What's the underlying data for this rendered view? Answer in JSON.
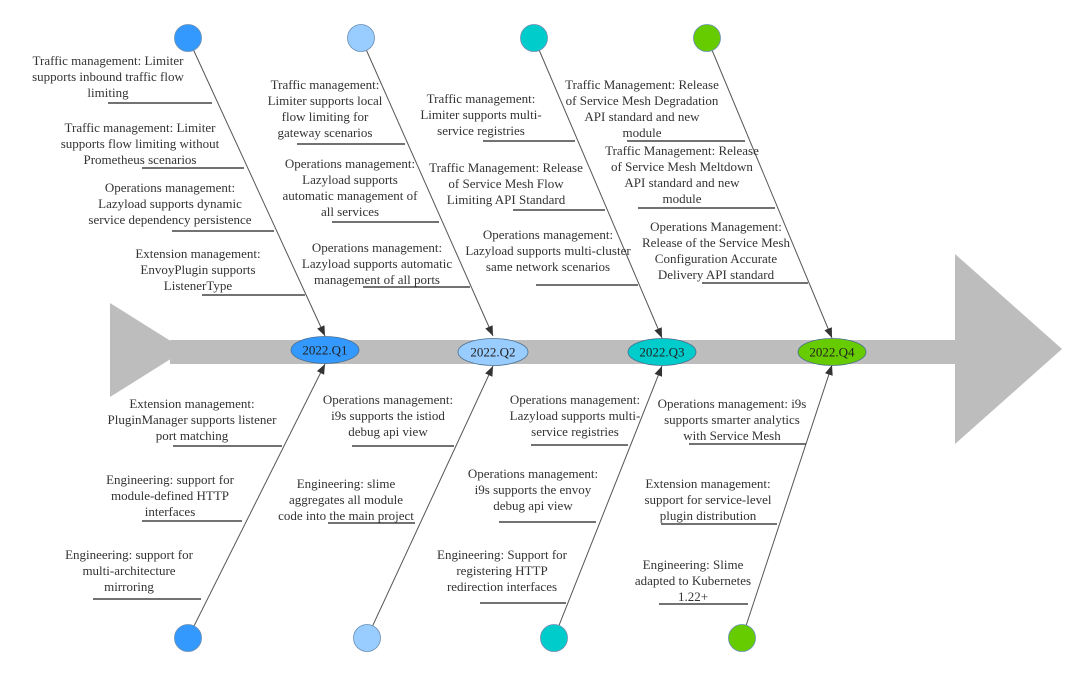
{
  "colors": {
    "spine": "#bdbdbd",
    "arrow_head": "#bdbdbd",
    "q1": "#3399ff",
    "q2": "#99ccff",
    "q3": "#00cccc",
    "q4": "#66cc00"
  },
  "quarters": [
    {
      "label": "2022.Q1",
      "top": [
        "Traffic management: Limiter supports inbound traffic flow limiting",
        "Traffic management: Limiter supports flow limiting without Prometheus scenarios",
        "Operations management: Lazyload supports dynamic service dependency persistence",
        "Extension management: EnvoyPlugin supports ListenerType"
      ],
      "bottom": [
        "Extension management: PluginManager supports listener port matching",
        "Engineering: support for module-defined HTTP interfaces",
        "Engineering: support for multi-architecture mirroring"
      ]
    },
    {
      "label": "2022.Q2",
      "top": [
        "Traffic management: Limiter supports local flow limiting for gateway scenarios",
        "Operations management: Lazyload supports automatic management of all services",
        "Operations management: Lazyload supports automatic management of all ports"
      ],
      "bottom": [
        "Operations management: i9s supports the istiod debug api view",
        "Engineering: slime aggregates all module code into the main project"
      ]
    },
    {
      "label": "2022.Q3",
      "top": [
        "Traffic management: Limiter supports multi-service registries",
        "Traffic Management: Release of Service Mesh Flow Limiting API Standard",
        "Operations management: Lazyload supports multi-cluster same network scenarios"
      ],
      "bottom": [
        "Operations management: Lazyload supports multi-service registries",
        "Operations management: i9s supports the envoy debug api view",
        "Engineering: Support for registering HTTP redirection interfaces"
      ]
    },
    {
      "label": "2022.Q4",
      "top": [
        "Traffic Management: Release of Service Mesh Degradation API standard and new module",
        "Traffic Management: Release of Service Mesh Meltdown API standard and new module",
        "Operations Management: Release of the Service Mesh Configuration Accurate Delivery API standard"
      ],
      "bottom": [
        "Operations management: i9s supports smarter analytics with Service Mesh",
        "Extension management: support for service-level plugin distribution",
        "Engineering: Slime adapted to Kubernetes 1.22+"
      ]
    }
  ]
}
